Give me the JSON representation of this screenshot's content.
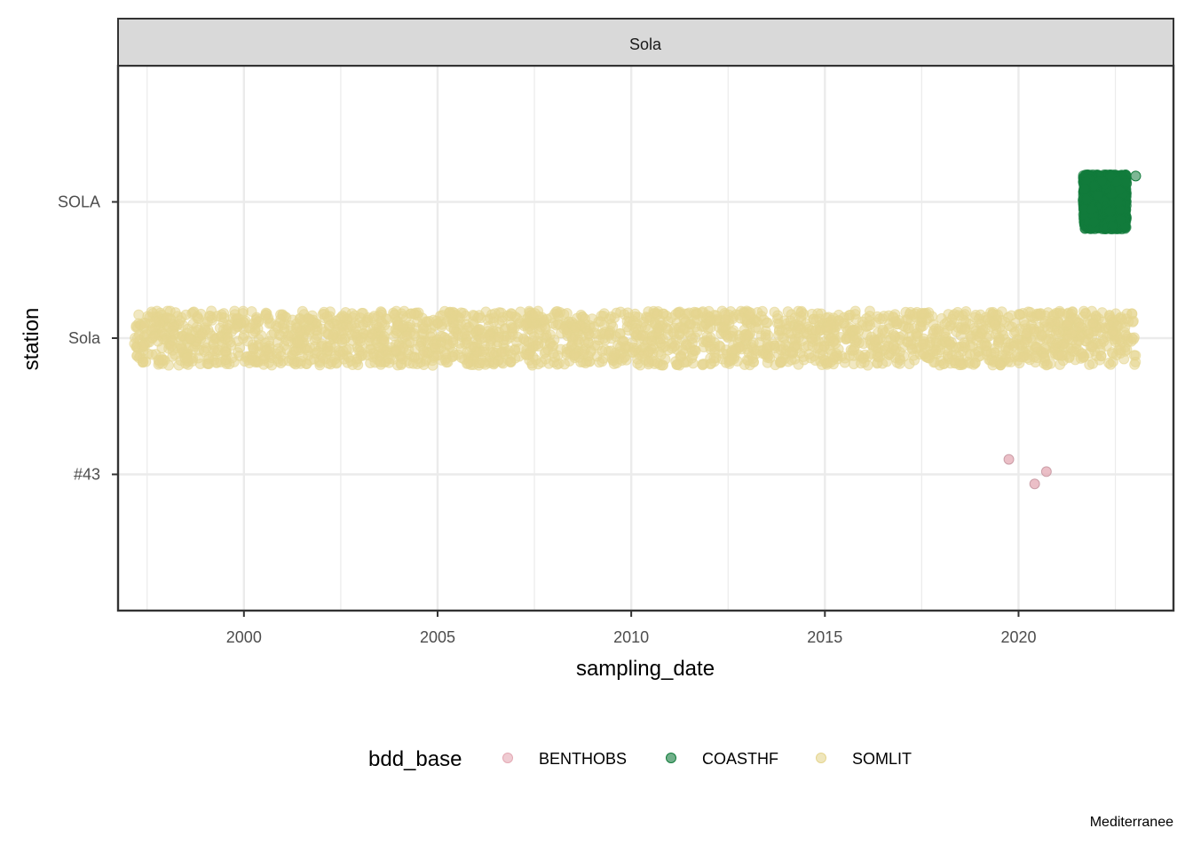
{
  "chart_data": {
    "type": "scatter",
    "facet_label": "Sola",
    "xlabel": "sampling_date",
    "ylabel": "station",
    "x_ticks": [
      "2000",
      "2005",
      "2010",
      "2015",
      "2020"
    ],
    "y_categories": [
      "#43",
      "Sola",
      "SOLA"
    ],
    "xlim": [
      "1996-10-01",
      "2024-01-01"
    ],
    "grid": true,
    "jitter": true,
    "legend": {
      "title": "bdd_base",
      "placement": "bottom",
      "entries": [
        "BENTHOBS",
        "COASTHF",
        "SOMLIT"
      ]
    },
    "caption": "Mediterranee",
    "series": [
      {
        "name": "BENTHOBS",
        "color": "#e4a9b4",
        "station": "#43",
        "points": [
          {
            "date": "2019-10-01",
            "station": "#43"
          },
          {
            "date": "2020-06-01",
            "station": "#43"
          },
          {
            "date": "2020-09-20",
            "station": "#43"
          }
        ]
      },
      {
        "name": "COASTHF",
        "color": "#137c3c",
        "station": "SOLA",
        "date_range": [
          "2021-09-01",
          "2022-10-15"
        ],
        "outlier_date": "2023-01-10",
        "approx_count": 1400
      },
      {
        "name": "SOMLIT",
        "color": "#e5d58f",
        "station": "Sola",
        "date_range": [
          "1997-03-01",
          "2023-01-15"
        ],
        "approx_count": 2500
      }
    ]
  }
}
